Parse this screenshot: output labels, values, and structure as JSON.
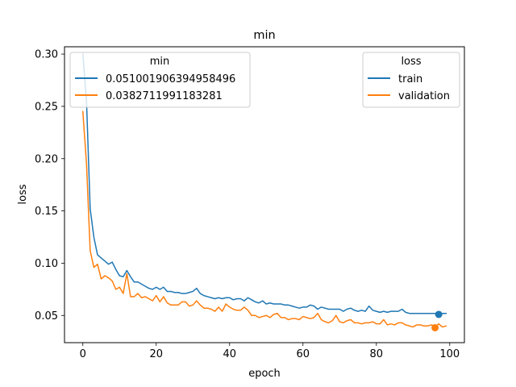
{
  "chart_data": {
    "type": "line",
    "title": "min",
    "xlabel": "epoch",
    "ylabel": "loss",
    "xlim": [
      -5,
      104
    ],
    "ylim": [
      0.024,
      0.307
    ],
    "xticks": [
      0,
      20,
      40,
      60,
      80,
      100
    ],
    "yticks": [
      0.05,
      0.1,
      0.15,
      0.2,
      0.25,
      0.3
    ],
    "ytick_labels": [
      "0.05",
      "0.10",
      "0.15",
      "0.20",
      "0.25",
      "0.30"
    ],
    "grid": false,
    "colors": {
      "train": "#1f77b4",
      "validation": "#ff7f0e"
    },
    "legend_loss": {
      "title": "loss",
      "placement": "upper right",
      "entries": [
        "train",
        "validation"
      ]
    },
    "legend_min": {
      "title": "min",
      "placement": "upper left",
      "entries": [
        "0.051001906394958496",
        "0.0382711991183281"
      ]
    },
    "series": [
      {
        "name": "train",
        "x": [
          0,
          1,
          2,
          3,
          4,
          5,
          6,
          7,
          8,
          9,
          10,
          11,
          12,
          13,
          14,
          15,
          16,
          17,
          18,
          19,
          20,
          21,
          22,
          23,
          24,
          25,
          26,
          27,
          28,
          29,
          30,
          31,
          32,
          33,
          34,
          35,
          36,
          37,
          38,
          39,
          40,
          41,
          42,
          43,
          44,
          45,
          46,
          47,
          48,
          49,
          50,
          51,
          52,
          53,
          54,
          55,
          56,
          57,
          58,
          59,
          60,
          61,
          62,
          63,
          64,
          65,
          66,
          67,
          68,
          69,
          70,
          71,
          72,
          73,
          74,
          75,
          76,
          77,
          78,
          79,
          80,
          81,
          82,
          83,
          84,
          85,
          86,
          87,
          88,
          89,
          90,
          91,
          92,
          93,
          94,
          95,
          96,
          97,
          98,
          99
        ],
        "values": [
          0.3,
          0.255,
          0.152,
          0.125,
          0.108,
          0.105,
          0.102,
          0.099,
          0.101,
          0.094,
          0.088,
          0.087,
          0.093,
          0.087,
          0.082,
          0.082,
          0.08,
          0.078,
          0.076,
          0.075,
          0.077,
          0.075,
          0.077,
          0.073,
          0.073,
          0.072,
          0.072,
          0.071,
          0.071,
          0.072,
          0.073,
          0.076,
          0.071,
          0.069,
          0.068,
          0.067,
          0.066,
          0.067,
          0.066,
          0.067,
          0.067,
          0.065,
          0.066,
          0.066,
          0.064,
          0.067,
          0.065,
          0.063,
          0.062,
          0.064,
          0.061,
          0.062,
          0.061,
          0.061,
          0.061,
          0.06,
          0.06,
          0.059,
          0.058,
          0.057,
          0.058,
          0.058,
          0.06,
          0.059,
          0.056,
          0.058,
          0.057,
          0.056,
          0.056,
          0.056,
          0.056,
          0.054,
          0.056,
          0.057,
          0.055,
          0.054,
          0.055,
          0.054,
          0.059,
          0.055,
          0.054,
          0.053,
          0.054,
          0.053,
          0.054,
          0.054,
          0.054,
          0.056,
          0.053,
          0.052,
          0.052,
          0.052,
          0.052,
          0.052,
          0.052,
          0.052,
          0.052,
          0.052,
          0.052,
          0.052
        ]
      },
      {
        "name": "validation",
        "x": [
          0,
          1,
          2,
          3,
          4,
          5,
          6,
          7,
          8,
          9,
          10,
          11,
          12,
          13,
          14,
          15,
          16,
          17,
          18,
          19,
          20,
          21,
          22,
          23,
          24,
          25,
          26,
          27,
          28,
          29,
          30,
          31,
          32,
          33,
          34,
          35,
          36,
          37,
          38,
          39,
          40,
          41,
          42,
          43,
          44,
          45,
          46,
          47,
          48,
          49,
          50,
          51,
          52,
          53,
          54,
          55,
          56,
          57,
          58,
          59,
          60,
          61,
          62,
          63,
          64,
          65,
          66,
          67,
          68,
          69,
          70,
          71,
          72,
          73,
          74,
          75,
          76,
          77,
          78,
          79,
          80,
          81,
          82,
          83,
          84,
          85,
          86,
          87,
          88,
          89,
          90,
          91,
          92,
          93,
          94,
          95,
          96,
          97,
          98,
          99
        ],
        "values": [
          0.245,
          0.195,
          0.112,
          0.096,
          0.099,
          0.085,
          0.088,
          0.086,
          0.083,
          0.075,
          0.077,
          0.071,
          0.09,
          0.068,
          0.068,
          0.071,
          0.067,
          0.068,
          0.066,
          0.064,
          0.069,
          0.063,
          0.068,
          0.062,
          0.06,
          0.06,
          0.06,
          0.063,
          0.063,
          0.059,
          0.06,
          0.064,
          0.06,
          0.057,
          0.057,
          0.056,
          0.054,
          0.058,
          0.054,
          0.061,
          0.058,
          0.056,
          0.055,
          0.055,
          0.058,
          0.055,
          0.05,
          0.05,
          0.048,
          0.049,
          0.05,
          0.048,
          0.051,
          0.052,
          0.048,
          0.048,
          0.046,
          0.047,
          0.047,
          0.046,
          0.049,
          0.048,
          0.047,
          0.048,
          0.052,
          0.046,
          0.044,
          0.043,
          0.045,
          0.05,
          0.044,
          0.043,
          0.045,
          0.046,
          0.043,
          0.043,
          0.042,
          0.043,
          0.043,
          0.044,
          0.042,
          0.042,
          0.046,
          0.041,
          0.042,
          0.041,
          0.043,
          0.043,
          0.041,
          0.04,
          0.039,
          0.041,
          0.041,
          0.04,
          0.04,
          0.041,
          0.039,
          0.042,
          0.039,
          0.04
        ]
      }
    ],
    "min_markers": [
      {
        "series": "train",
        "x": 97,
        "y": 0.051001906394958496
      },
      {
        "series": "validation",
        "x": 96,
        "y": 0.0382711991183281
      }
    ]
  }
}
